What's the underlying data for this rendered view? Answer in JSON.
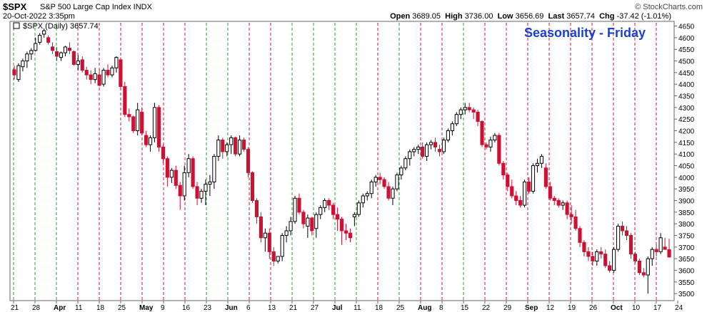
{
  "header": {
    "ticker": "$SPX",
    "description": "S&P 500 Large Cap Index  INDX",
    "datetime": "20-Oct-2022 3:35pm",
    "copyright": "© StockCharts.com",
    "open_label": "Open",
    "open": "3689.05",
    "high_label": "High",
    "high": "3736.00",
    "low_label": "Low",
    "low": "3656.69",
    "last_label": "Last",
    "last": "3657.74",
    "chg_label": "Chg",
    "chg": "-37.42 (-1.01%)"
  },
  "colors": {
    "up": "#000000",
    "down": "#cc1133",
    "green_line": "#2a9d2a",
    "red_line": "#cc1133",
    "title": "#1a3fd6"
  },
  "chart_data": {
    "type": "candlestick",
    "title": "Seasonality - Friday",
    "legend": "$SPX (Daily) 3657.74",
    "ylim": [
      3470,
      4670
    ],
    "yticks": [
      3500,
      3550,
      3600,
      3650,
      3700,
      3750,
      3800,
      3850,
      3900,
      3950,
      4000,
      4050,
      4100,
      4150,
      4200,
      4250,
      4300,
      4350,
      4400,
      4450,
      4500,
      4550,
      4600,
      4650
    ],
    "xticks": [
      "21",
      "28",
      "Apr",
      "11",
      "18",
      "25",
      "May",
      "9",
      "16",
      "23",
      "Jun",
      "6",
      "13",
      "21",
      "27",
      "Jul",
      "11",
      "18",
      "25",
      "Aug",
      "8",
      "15",
      "22",
      "29",
      "Sep",
      "12",
      "19",
      "26",
      "Oct",
      "10",
      "17",
      "24"
    ],
    "weekly_lines": [
      {
        "week": "Mar 21",
        "color": "green"
      },
      {
        "week": "Mar 28",
        "color": "green"
      },
      {
        "week": "Apr 4",
        "color": "green"
      },
      {
        "week": "Apr 11",
        "color": "red"
      },
      {
        "week": "Apr 18",
        "color": "red"
      },
      {
        "week": "Apr 25",
        "color": "red"
      },
      {
        "week": "May 2",
        "color": "red"
      },
      {
        "week": "May 9",
        "color": "red"
      },
      {
        "week": "May 16",
        "color": "red"
      },
      {
        "week": "May 23",
        "color": "green"
      },
      {
        "week": "May 30",
        "color": "green"
      },
      {
        "week": "Jun 6",
        "color": "red"
      },
      {
        "week": "Jun 13",
        "color": "red"
      },
      {
        "week": "Jun 20",
        "color": "green"
      },
      {
        "week": "Jun 27",
        "color": "green"
      },
      {
        "week": "Jul 4",
        "color": "green"
      },
      {
        "week": "Jul 11",
        "color": "green"
      },
      {
        "week": "Jul 18",
        "color": "red"
      },
      {
        "week": "Jul 25",
        "color": "green"
      },
      {
        "week": "Aug 1",
        "color": "red"
      },
      {
        "week": "Aug 8",
        "color": "red"
      },
      {
        "week": "Aug 15",
        "color": "green"
      },
      {
        "week": "Aug 22",
        "color": "red"
      },
      {
        "week": "Aug 29",
        "color": "red"
      },
      {
        "week": "Sep 5",
        "color": "red"
      },
      {
        "week": "Sep 12",
        "color": "red"
      },
      {
        "week": "Sep 19",
        "color": "red"
      },
      {
        "week": "Sep 26",
        "color": "red"
      },
      {
        "week": "Oct 3",
        "color": "red"
      },
      {
        "week": "Oct 10",
        "color": "red"
      },
      {
        "week": "Oct 17",
        "color": "red"
      }
    ],
    "candles_from": "2022-03-21",
    "candles": [
      [
        4462,
        4480,
        4420,
        4440
      ],
      [
        4420,
        4490,
        4410,
        4480
      ],
      [
        4475,
        4510,
        4455,
        4500
      ],
      [
        4500,
        4540,
        4470,
        4530
      ],
      [
        4530,
        4555,
        4505,
        4545
      ],
      [
        4545,
        4600,
        4540,
        4575
      ],
      [
        4580,
        4620,
        4570,
        4610
      ],
      [
        4615,
        4640,
        4600,
        4630
      ],
      [
        4600,
        4610,
        4570,
        4580
      ],
      [
        4560,
        4580,
        4530,
        4545
      ],
      [
        4540,
        4560,
        4500,
        4520
      ],
      [
        4515,
        4540,
        4500,
        4535
      ],
      [
        4535,
        4565,
        4520,
        4560
      ],
      [
        4555,
        4580,
        4530,
        4545
      ],
      [
        4540,
        4545,
        4480,
        4485
      ],
      [
        4485,
        4525,
        4460,
        4500
      ],
      [
        4505,
        4520,
        4450,
        4460
      ],
      [
        4460,
        4475,
        4420,
        4440
      ],
      [
        4440,
        4460,
        4400,
        4420
      ],
      [
        4420,
        4470,
        4405,
        4445
      ],
      [
        4440,
        4465,
        4390,
        4395
      ],
      [
        4400,
        4470,
        4390,
        4460
      ],
      [
        4460,
        4485,
        4430,
        4440
      ],
      [
        4440,
        4480,
        4430,
        4470
      ],
      [
        4470,
        4520,
        4450,
        4515
      ],
      [
        4505,
        4515,
        4380,
        4390
      ],
      [
        4390,
        4410,
        4260,
        4270
      ],
      [
        4270,
        4295,
        4240,
        4260
      ],
      [
        4260,
        4265,
        4190,
        4200
      ],
      [
        4200,
        4320,
        4180,
        4290
      ],
      [
        4280,
        4300,
        4180,
        4190
      ],
      [
        4180,
        4200,
        4130,
        4140
      ],
      [
        4140,
        4180,
        4110,
        4170
      ],
      [
        4170,
        4320,
        4150,
        4300
      ],
      [
        4300,
        4310,
        4110,
        4130
      ],
      [
        4130,
        4140,
        4060,
        4080
      ],
      [
        4080,
        4090,
        3960,
        4000
      ],
      [
        4000,
        4040,
        3975,
        4030
      ],
      [
        4030,
        4050,
        3950,
        3965
      ],
      [
        3965,
        3980,
        3860,
        3920
      ],
      [
        3920,
        4050,
        3900,
        4020
      ],
      [
        4020,
        4100,
        4000,
        4080
      ],
      [
        4080,
        4090,
        3950,
        3960
      ],
      [
        3960,
        3980,
        3880,
        3910
      ],
      [
        3910,
        3950,
        3890,
        3940
      ],
      [
        3940,
        3990,
        3880,
        3970
      ],
      [
        3970,
        4010,
        3920,
        3980
      ],
      [
        3980,
        4100,
        3950,
        4090
      ],
      [
        4090,
        4180,
        4070,
        4160
      ],
      [
        4160,
        4170,
        4080,
        4110
      ],
      [
        4110,
        4150,
        4090,
        4140
      ],
      [
        4140,
        4180,
        4100,
        4170
      ],
      [
        4170,
        4175,
        4090,
        4100
      ],
      [
        4100,
        4180,
        4090,
        4160
      ],
      [
        4160,
        4170,
        4110,
        4120
      ],
      [
        4120,
        4130,
        4000,
        4020
      ],
      [
        4020,
        4025,
        3890,
        3900
      ],
      [
        3900,
        3910,
        3800,
        3830
      ],
      [
        3830,
        3850,
        3720,
        3740
      ],
      [
        3740,
        3780,
        3680,
        3760
      ],
      [
        3760,
        3780,
        3650,
        3680
      ],
      [
        3680,
        3700,
        3620,
        3640
      ],
      [
        3640,
        3660,
        3630,
        3660
      ],
      [
        3660,
        3760,
        3640,
        3750
      ],
      [
        3750,
        3790,
        3720,
        3770
      ],
      [
        3770,
        3830,
        3750,
        3810
      ],
      [
        3810,
        3920,
        3800,
        3910
      ],
      [
        3910,
        3930,
        3840,
        3850
      ],
      [
        3850,
        3860,
        3780,
        3800
      ],
      [
        3790,
        3840,
        3740,
        3825
      ],
      [
        3825,
        3830,
        3750,
        3770
      ],
      [
        3780,
        3850,
        3740,
        3840
      ],
      [
        3840,
        3880,
        3820,
        3870
      ],
      [
        3870,
        3910,
        3850,
        3900
      ],
      [
        3900,
        3910,
        3860,
        3880
      ],
      [
        3880,
        3890,
        3820,
        3840
      ],
      [
        3840,
        3870,
        3770,
        3820
      ],
      [
        3820,
        3830,
        3710,
        3770
      ],
      [
        3770,
        3800,
        3730,
        3760
      ],
      [
        3760,
        3780,
        3720,
        3740
      ],
      [
        3830,
        3850,
        3790,
        3840
      ],
      [
        3840,
        3900,
        3830,
        3890
      ],
      [
        3890,
        3930,
        3870,
        3920
      ],
      [
        3920,
        3940,
        3900,
        3930
      ],
      [
        3930,
        3990,
        3910,
        3980
      ],
      [
        3980,
        4010,
        3960,
        4000
      ],
      [
        4000,
        4020,
        3970,
        3990
      ],
      [
        3990,
        4000,
        3950,
        3960
      ],
      [
        3960,
        3980,
        3900,
        3910
      ],
      [
        3910,
        3960,
        3880,
        3950
      ],
      [
        3950,
        4020,
        3940,
        4010
      ],
      [
        4010,
        4050,
        3990,
        4040
      ],
      [
        4040,
        4090,
        4030,
        4080
      ],
      [
        4080,
        4120,
        4050,
        4110
      ],
      [
        4110,
        4130,
        4090,
        4120
      ],
      [
        4120,
        4140,
        4100,
        4130
      ],
      [
        4130,
        4150,
        4080,
        4090
      ],
      [
        4090,
        4150,
        4070,
        4140
      ],
      [
        4140,
        4160,
        4120,
        4150
      ],
      [
        4150,
        4170,
        4110,
        4130
      ],
      [
        4120,
        4140,
        4090,
        4110
      ],
      [
        4110,
        4170,
        4100,
        4160
      ],
      [
        4160,
        4210,
        4150,
        4200
      ],
      [
        4200,
        4240,
        4180,
        4230
      ],
      [
        4230,
        4280,
        4220,
        4270
      ],
      [
        4270,
        4300,
        4250,
        4290
      ],
      [
        4290,
        4320,
        4270,
        4300
      ],
      [
        4300,
        4320,
        4280,
        4290
      ],
      [
        4290,
        4300,
        4250,
        4280
      ],
      [
        4280,
        4290,
        4220,
        4240
      ],
      [
        4240,
        4245,
        4130,
        4140
      ],
      [
        4140,
        4150,
        4120,
        4130
      ],
      [
        4130,
        4175,
        4110,
        4160
      ],
      [
        4160,
        4190,
        4150,
        4180
      ],
      [
        4180,
        4190,
        4050,
        4060
      ],
      [
        4060,
        4070,
        3990,
        4010
      ],
      [
        4010,
        4020,
        3940,
        3960
      ],
      [
        3960,
        3990,
        3910,
        3920
      ],
      [
        3920,
        3940,
        3880,
        3900
      ],
      [
        3900,
        3920,
        3870,
        3880
      ],
      [
        3880,
        3990,
        3870,
        3980
      ],
      [
        3980,
        4000,
        3930,
        3940
      ],
      [
        3940,
        4060,
        3930,
        4050
      ],
      [
        4050,
        4080,
        4020,
        4060
      ],
      [
        4060,
        4100,
        4040,
        4090
      ],
      [
        4040,
        4060,
        3950,
        3960
      ],
      [
        3960,
        3980,
        3900,
        3910
      ],
      [
        3910,
        3920,
        3880,
        3900
      ],
      [
        3900,
        3910,
        3870,
        3880
      ],
      [
        3880,
        3900,
        3860,
        3890
      ],
      [
        3890,
        3900,
        3820,
        3840
      ],
      [
        3840,
        3880,
        3800,
        3830
      ],
      [
        3830,
        3860,
        3770,
        3780
      ],
      [
        3780,
        3790,
        3700,
        3720
      ],
      [
        3720,
        3730,
        3660,
        3680
      ],
      [
        3680,
        3700,
        3640,
        3660
      ],
      [
        3660,
        3680,
        3620,
        3640
      ],
      [
        3640,
        3690,
        3620,
        3680
      ],
      [
        3680,
        3700,
        3650,
        3670
      ],
      [
        3670,
        3690,
        3610,
        3620
      ],
      [
        3620,
        3640,
        3590,
        3600
      ],
      [
        3600,
        3700,
        3590,
        3690
      ],
      [
        3690,
        3800,
        3680,
        3790
      ],
      [
        3790,
        3810,
        3750,
        3770
      ],
      [
        3770,
        3790,
        3730,
        3750
      ],
      [
        3750,
        3760,
        3650,
        3670
      ],
      [
        3670,
        3680,
        3630,
        3640
      ],
      [
        3640,
        3650,
        3580,
        3590
      ],
      [
        3590,
        3610,
        3570,
        3580
      ],
      [
        3580,
        3660,
        3500,
        3650
      ],
      [
        3650,
        3700,
        3620,
        3690
      ],
      [
        3690,
        3710,
        3660,
        3680
      ],
      [
        3680,
        3760,
        3670,
        3740
      ],
      [
        3700,
        3740,
        3690,
        3690
      ],
      [
        3689,
        3736,
        3656,
        3657
      ]
    ]
  }
}
